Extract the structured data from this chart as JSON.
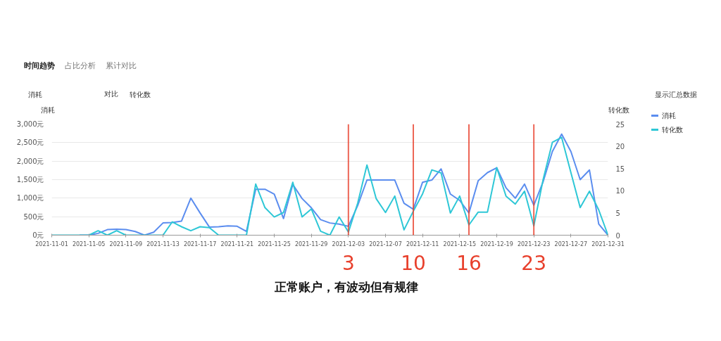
{
  "chart_data": {
    "type": "line",
    "ylabel": "消耗",
    "y2label": "转化数",
    "annotations": [
      "时间趋势",
      "占比分析",
      "累计对比",
      "消耗",
      "对比",
      "转化数",
      "显示汇总数据",
      "正常账户，有波动但有规律"
    ],
    "x": [
      "2021-11-01",
      "2021-11-02",
      "2021-11-03",
      "2021-11-04",
      "2021-11-05",
      "2021-11-06",
      "2021-11-07",
      "2021-11-08",
      "2021-11-09",
      "2021-11-10",
      "2021-11-11",
      "2021-11-12",
      "2021-11-13",
      "2021-11-14",
      "2021-11-15",
      "2021-11-16",
      "2021-11-17",
      "2021-11-18",
      "2021-11-19",
      "2021-11-20",
      "2021-11-21",
      "2021-11-22",
      "2021-11-23",
      "2021-11-24",
      "2021-11-25",
      "2021-11-26",
      "2021-11-27",
      "2021-11-28",
      "2021-11-29",
      "2021-11-30",
      "2021-12-01",
      "2021-12-02",
      "2021-12-03",
      "2021-12-04",
      "2021-12-05",
      "2021-12-06",
      "2021-12-07",
      "2021-12-08",
      "2021-12-09",
      "2021-12-10",
      "2021-12-11",
      "2021-12-12",
      "2021-12-13",
      "2021-12-14",
      "2021-12-15",
      "2021-12-16",
      "2021-12-17",
      "2021-12-18",
      "2021-12-19",
      "2021-12-20",
      "2021-12-21",
      "2021-12-22",
      "2021-12-23",
      "2021-12-24",
      "2021-12-25",
      "2021-12-26",
      "2021-12-27",
      "2021-12-28",
      "2021-12-29",
      "2021-12-30",
      "2021-12-31"
    ],
    "series": [
      {
        "name": "消耗",
        "color": "#5b8def",
        "values": [
          null,
          null,
          null,
          0,
          0,
          50,
          150,
          160,
          150,
          100,
          0,
          80,
          330,
          340,
          380,
          1000,
          600,
          220,
          230,
          250,
          240,
          100,
          1240,
          1240,
          1110,
          450,
          1370,
          990,
          740,
          420,
          330,
          300,
          240,
          800,
          1490,
          1490,
          1490,
          1490,
          860,
          700,
          1430,
          1490,
          1790,
          1110,
          940,
          600,
          1470,
          1690,
          1820,
          1280,
          1000,
          1380,
          810,
          1440,
          2260,
          2730,
          2260,
          1500,
          1760,
          300,
          0
        ]
      },
      {
        "name": "转化数",
        "color": "#2ec7d6",
        "axis": "y2",
        "values": [
          0,
          0,
          0,
          0,
          0,
          1,
          0,
          1,
          0,
          0,
          0,
          0,
          0,
          3,
          1.9,
          1,
          1.9,
          1.7,
          0,
          0,
          0,
          0,
          11.5,
          6.2,
          4.1,
          5.1,
          11.9,
          4.1,
          5.9,
          0.9,
          0,
          4.1,
          0.7,
          7.2,
          15.8,
          8.2,
          5.1,
          8.8,
          1.2,
          5.4,
          9.3,
          14.7,
          14,
          5,
          8.8,
          2.3,
          5.2,
          5.2,
          15.2,
          8.8,
          7,
          9.9,
          2.1,
          12.5,
          20.9,
          22,
          14.1,
          6.2,
          9.9,
          5.7,
          0
        ]
      }
    ],
    "xlim": [
      "2021-11-01",
      "2021-12-31"
    ],
    "xticks": [
      "2021-11-01",
      "2021-11-05",
      "2021-11-09",
      "2021-11-13",
      "2021-11-17",
      "2021-11-21",
      "2021-11-25",
      "2021-11-29",
      "2021-12-03",
      "2021-12-07",
      "2021-12-11",
      "2021-12-15",
      "2021-12-19",
      "2021-12-23",
      "2021-12-27",
      "2021-12-31"
    ],
    "ylim": [
      0,
      3000
    ],
    "yticks": [
      {
        "value": 0,
        "label": "0元"
      },
      {
        "value": 500,
        "label": "500元"
      },
      {
        "value": 1000,
        "label": "1,000元"
      },
      {
        "value": 1500,
        "label": "1,500元"
      },
      {
        "value": 2000,
        "label": "2,000元"
      },
      {
        "value": 2500,
        "label": "2,500元"
      },
      {
        "value": 3000,
        "label": "3,000元"
      }
    ],
    "y2lim": [
      0,
      25
    ],
    "y2ticks": [
      0,
      5,
      10,
      15,
      20,
      25
    ],
    "ref_lines": [
      {
        "axis": "x",
        "value": "2021-12-03",
        "label": "3",
        "color": "#e8402c"
      },
      {
        "axis": "x",
        "value": "2021-12-10",
        "label": "10",
        "color": "#e8402c"
      },
      {
        "axis": "x",
        "value": "2021-12-16",
        "label": "16",
        "color": "#e8402c"
      },
      {
        "axis": "x",
        "value": "2021-12-23",
        "label": "23",
        "color": "#e8402c"
      }
    ],
    "grid": "y",
    "legend": "top right",
    "marker": "none",
    "line_style": "solid"
  }
}
